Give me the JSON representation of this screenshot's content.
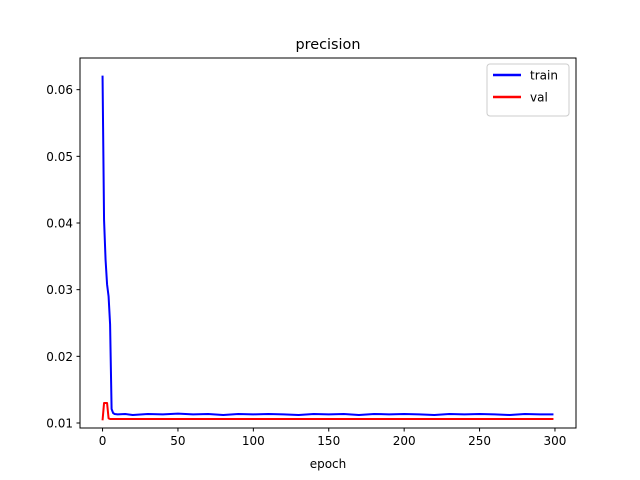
{
  "chart_data": {
    "type": "line",
    "title": "precision",
    "xlabel": "epoch",
    "ylabel": "",
    "xlim": [
      -14.95,
      313.95
    ],
    "ylim": [
      0.00925,
      0.06475
    ],
    "x_ticks": [
      0,
      50,
      100,
      150,
      200,
      250,
      300
    ],
    "x_tick_labels": [
      "0",
      "50",
      "100",
      "150",
      "200",
      "250",
      "300"
    ],
    "y_ticks": [
      0.01,
      0.02,
      0.03,
      0.04,
      0.05,
      0.06
    ],
    "y_tick_labels": [
      "0.01",
      "0.02",
      "0.03",
      "0.04",
      "0.05",
      "0.06"
    ],
    "grid": false,
    "legend_position": "top-right",
    "series": [
      {
        "name": "train",
        "color": "#0000ff",
        "points": [
          [
            0,
            0.0621
          ],
          [
            1,
            0.0405
          ],
          [
            2,
            0.0345
          ],
          [
            3,
            0.0308
          ],
          [
            4,
            0.029
          ],
          [
            5,
            0.0248
          ],
          [
            6,
            0.0121
          ],
          [
            7,
            0.0115
          ],
          [
            8,
            0.01135
          ],
          [
            10,
            0.0113
          ],
          [
            15,
            0.01135
          ],
          [
            20,
            0.0112
          ],
          [
            30,
            0.01135
          ],
          [
            40,
            0.0113
          ],
          [
            50,
            0.0114
          ],
          [
            60,
            0.0113
          ],
          [
            70,
            0.01135
          ],
          [
            80,
            0.0112
          ],
          [
            90,
            0.01135
          ],
          [
            100,
            0.0113
          ],
          [
            110,
            0.01135
          ],
          [
            120,
            0.0113
          ],
          [
            130,
            0.0112
          ],
          [
            140,
            0.01135
          ],
          [
            150,
            0.0113
          ],
          [
            160,
            0.01135
          ],
          [
            170,
            0.0112
          ],
          [
            180,
            0.01135
          ],
          [
            190,
            0.0113
          ],
          [
            200,
            0.01135
          ],
          [
            210,
            0.0113
          ],
          [
            220,
            0.0112
          ],
          [
            230,
            0.01135
          ],
          [
            240,
            0.0113
          ],
          [
            250,
            0.01135
          ],
          [
            260,
            0.0113
          ],
          [
            270,
            0.0112
          ],
          [
            280,
            0.01135
          ],
          [
            290,
            0.0113
          ],
          [
            299,
            0.0113
          ]
        ]
      },
      {
        "name": "val",
        "color": "#ff0000",
        "points": [
          [
            0,
            0.0104
          ],
          [
            1,
            0.013
          ],
          [
            2,
            0.013
          ],
          [
            3,
            0.013
          ],
          [
            4,
            0.0107
          ],
          [
            5,
            0.0106
          ],
          [
            10,
            0.0106
          ],
          [
            50,
            0.0106
          ],
          [
            100,
            0.0106
          ],
          [
            150,
            0.0106
          ],
          [
            200,
            0.0106
          ],
          [
            250,
            0.0106
          ],
          [
            299,
            0.0106
          ]
        ]
      }
    ]
  }
}
